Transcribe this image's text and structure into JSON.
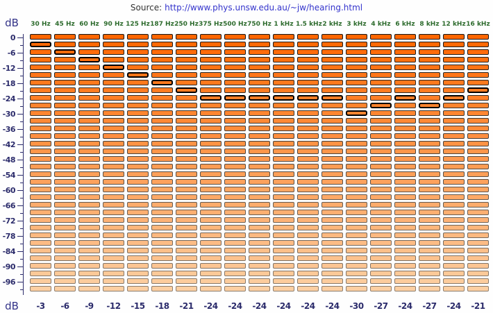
{
  "source": {
    "label": "Source:",
    "url": "http://www.phys.unsw.edu.au/~jw/hearing.html"
  },
  "axis": {
    "unit": "dB",
    "row_count": 34,
    "db_per_row": 3,
    "top_db": 0,
    "bottom_db": -99,
    "labels": [
      "0",
      "-6",
      "-12",
      "-18",
      "-24",
      "-30",
      "-36",
      "-42",
      "-48",
      "-54",
      "-60",
      "-66",
      "-72",
      "-78",
      "-84",
      "-90",
      "-96"
    ]
  },
  "columns": [
    {
      "freq": "30 Hz",
      "value_db": -3,
      "value_label": "-3"
    },
    {
      "freq": "45 Hz",
      "value_db": -6,
      "value_label": "-6"
    },
    {
      "freq": "60 Hz",
      "value_db": -9,
      "value_label": "-9"
    },
    {
      "freq": "90 Hz",
      "value_db": -12,
      "value_label": "-12"
    },
    {
      "freq": "125 Hz",
      "value_db": -15,
      "value_label": "-15"
    },
    {
      "freq": "187 Hz",
      "value_db": -18,
      "value_label": "-18"
    },
    {
      "freq": "250 Hz",
      "value_db": -21,
      "value_label": "-21"
    },
    {
      "freq": "375 Hz",
      "value_db": -24,
      "value_label": "-24"
    },
    {
      "freq": "500 Hz",
      "value_db": -24,
      "value_label": "-24"
    },
    {
      "freq": "750 Hz",
      "value_db": -24,
      "value_label": "-24"
    },
    {
      "freq": "1 kHz",
      "value_db": -24,
      "value_label": "-24"
    },
    {
      "freq": "1.5 kHz",
      "value_db": -24,
      "value_label": "-24"
    },
    {
      "freq": "2 kHz",
      "value_db": -24,
      "value_label": "-24"
    },
    {
      "freq": "3 kHz",
      "value_db": -30,
      "value_label": "-30"
    },
    {
      "freq": "4 kHz",
      "value_db": -27,
      "value_label": "-27"
    },
    {
      "freq": "6 kHz",
      "value_db": -24,
      "value_label": "-24"
    },
    {
      "freq": "8 kHz",
      "value_db": -27,
      "value_label": "-27"
    },
    {
      "freq": "12 kHz",
      "value_db": -24,
      "value_label": "-24"
    },
    {
      "freq": "16 kHz",
      "value_db": -21,
      "value_label": "-21"
    }
  ],
  "colors": {
    "segment_top": "#FF6600",
    "segment_bottom": "#FCCFA2",
    "segment_border_top": "#141414",
    "segment_border_bottom": "#8C7D6E",
    "selected_border": "#000000",
    "axis_navy": "#2B2B6B",
    "freq_green": "#2D6B2D",
    "link_blue": "#3333CC",
    "source_text": "#333333"
  }
}
